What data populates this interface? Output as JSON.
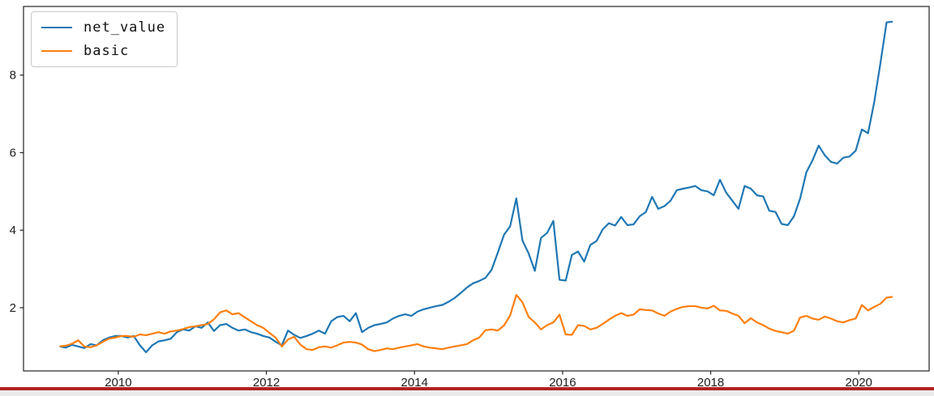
{
  "chart_data": {
    "type": "line",
    "title": "",
    "xlabel": "",
    "ylabel": "",
    "grid": false,
    "legend_position": "upper-left",
    "x_axis": {
      "start": "2009-03",
      "frequency": "monthly",
      "tick_labels": [
        "2010",
        "2012",
        "2014",
        "2016",
        "2018",
        "2020"
      ],
      "tick_values": [
        2010,
        2012,
        2014,
        2016,
        2018,
        2020
      ],
      "range": [
        2008.72,
        2020.95
      ]
    },
    "y_axis": {
      "tick_labels": [
        "2",
        "4",
        "6",
        "8"
      ],
      "tick_values": [
        2,
        4,
        6,
        8
      ],
      "range": [
        0.37,
        9.77
      ]
    },
    "series": [
      {
        "name": "net_value",
        "color": "#1f77b4",
        "values": [
          1.0,
          0.97,
          1.04,
          1.0,
          0.96,
          1.06,
          1.03,
          1.16,
          1.23,
          1.27,
          1.27,
          1.23,
          1.27,
          1.03,
          0.85,
          1.03,
          1.13,
          1.16,
          1.2,
          1.37,
          1.44,
          1.41,
          1.52,
          1.48,
          1.62,
          1.4,
          1.55,
          1.58,
          1.48,
          1.41,
          1.44,
          1.37,
          1.33,
          1.27,
          1.23,
          1.12,
          1.03,
          1.41,
          1.3,
          1.22,
          1.27,
          1.33,
          1.41,
          1.33,
          1.65,
          1.76,
          1.79,
          1.65,
          1.86,
          1.37,
          1.48,
          1.55,
          1.58,
          1.62,
          1.72,
          1.79,
          1.83,
          1.79,
          1.9,
          1.96,
          2.0,
          2.04,
          2.07,
          2.15,
          2.25,
          2.38,
          2.52,
          2.63,
          2.69,
          2.77,
          2.98,
          3.42,
          3.88,
          4.1,
          4.82,
          3.73,
          3.4,
          2.95,
          3.8,
          3.93,
          4.24,
          2.72,
          2.7,
          3.36,
          3.45,
          3.19,
          3.62,
          3.72,
          4.02,
          4.18,
          4.12,
          4.34,
          4.13,
          4.15,
          4.36,
          4.47,
          4.86,
          4.55,
          4.62,
          4.76,
          5.03,
          5.07,
          5.1,
          5.14,
          5.03,
          5.0,
          4.9,
          5.3,
          4.97,
          4.76,
          4.55,
          5.14,
          5.07,
          4.9,
          4.87,
          4.5,
          4.47,
          4.16,
          4.13,
          4.36,
          4.82,
          5.49,
          5.8,
          6.18,
          5.93,
          5.76,
          5.72,
          5.87,
          5.9,
          6.05,
          6.6,
          6.5,
          7.3,
          8.3,
          9.36,
          9.38
        ]
      },
      {
        "name": "basic",
        "color": "#ff7f0e",
        "values": [
          1.0,
          1.02,
          1.07,
          1.16,
          1.0,
          0.98,
          1.03,
          1.12,
          1.2,
          1.23,
          1.27,
          1.27,
          1.25,
          1.31,
          1.29,
          1.33,
          1.37,
          1.33,
          1.39,
          1.41,
          1.45,
          1.5,
          1.52,
          1.55,
          1.58,
          1.7,
          1.88,
          1.93,
          1.83,
          1.86,
          1.75,
          1.65,
          1.55,
          1.48,
          1.35,
          1.23,
          1.0,
          1.18,
          1.25,
          1.05,
          0.93,
          0.91,
          0.98,
          1.0,
          0.97,
          1.03,
          1.1,
          1.12,
          1.1,
          1.05,
          0.93,
          0.88,
          0.91,
          0.95,
          0.93,
          0.97,
          1.0,
          1.03,
          1.06,
          1.0,
          0.97,
          0.95,
          0.93,
          0.97,
          1.0,
          1.03,
          1.06,
          1.16,
          1.23,
          1.42,
          1.44,
          1.41,
          1.54,
          1.8,
          2.33,
          2.14,
          1.76,
          1.62,
          1.44,
          1.55,
          1.62,
          1.82,
          1.31,
          1.3,
          1.55,
          1.53,
          1.44,
          1.48,
          1.58,
          1.69,
          1.79,
          1.86,
          1.79,
          1.82,
          1.96,
          1.94,
          1.93,
          1.85,
          1.79,
          1.9,
          1.97,
          2.02,
          2.04,
          2.04,
          2.0,
          1.98,
          2.05,
          1.93,
          1.92,
          1.85,
          1.79,
          1.6,
          1.73,
          1.62,
          1.55,
          1.46,
          1.4,
          1.37,
          1.33,
          1.41,
          1.75,
          1.79,
          1.72,
          1.69,
          1.77,
          1.72,
          1.65,
          1.62,
          1.68,
          1.72,
          2.07,
          1.93,
          2.02,
          2.1,
          2.26,
          2.28
        ]
      }
    ]
  },
  "window": {
    "bottom_bar_color": "#b22222"
  }
}
